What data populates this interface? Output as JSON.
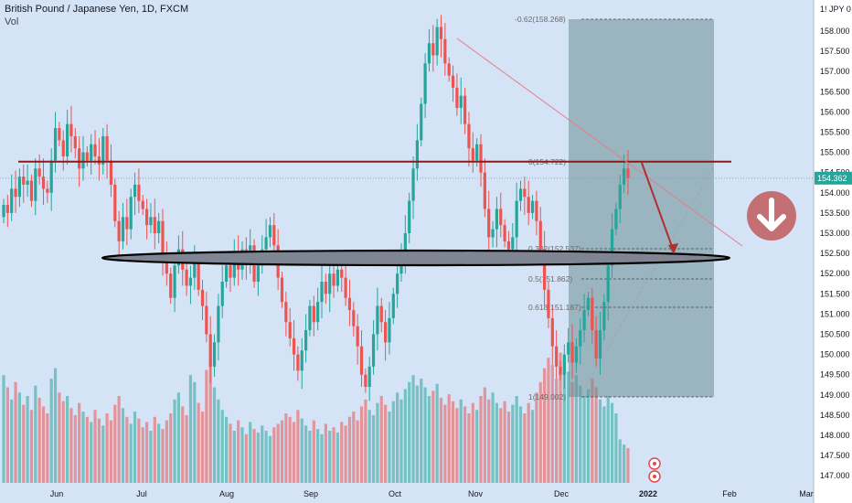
{
  "header": {
    "symbol_line": "British Pound / Japanese Yen, 1D, FXCM",
    "vol_label": "Vol"
  },
  "chart_data": {
    "type": "candlestick",
    "title": "British Pound / Japanese Yen, 1D, FXCM",
    "currency_label": "JPY",
    "ylim": [
      146.8,
      158.7
    ],
    "y_ticks": [
      "158.000",
      "157.500",
      "157.000",
      "156.500",
      "156.000",
      "155.500",
      "155.000",
      "154.500",
      "154.000",
      "153.500",
      "153.000",
      "152.500",
      "152.000",
      "151.500",
      "151.000",
      "150.500",
      "150.000",
      "149.500",
      "149.000",
      "148.500",
      "148.000",
      "147.500",
      "147.000"
    ],
    "x_ticks": [
      "Jun",
      "Jul",
      "Aug",
      "Sep",
      "Oct",
      "Nov",
      "Dec",
      "2022",
      "Feb",
      "Mar"
    ],
    "last_price": "154.362",
    "resistance_level": 154.77,
    "colors": {
      "up": "#26a69a",
      "down": "#ef5350",
      "bg": "#d4e3f6",
      "line": "#8b1a1a"
    },
    "fib_labels": [
      "-0.62(158.268)",
      "0(154.722)",
      "0.382(152.537)",
      "0.5(151.862)",
      "0.618(151.187)",
      "1(149.002)"
    ],
    "closes": [
      153.7,
      153.5,
      154.1,
      153.9,
      154.4,
      154.2,
      154.3,
      153.8,
      154.6,
      154.4,
      154.1,
      154.0,
      154.8,
      155.6,
      155.3,
      154.9,
      155.7,
      155.4,
      155.1,
      154.6,
      155.0,
      154.8,
      155.2,
      154.9,
      154.7,
      155.4,
      154.8,
      154.2,
      153.3,
      152.8,
      153.4,
      153.1,
      153.9,
      154.2,
      153.8,
      153.6,
      153.2,
      153.4,
      153.0,
      153.3,
      152.4,
      152.0,
      151.4,
      152.2,
      152.6,
      152.1,
      151.7,
      151.9,
      152.3,
      151.6,
      151.2,
      150.5,
      149.7,
      150.3,
      151.2,
      151.8,
      152.2,
      151.9,
      152.5,
      152.1,
      152.6,
      152.3,
      152.7,
      151.8,
      152.2,
      152.6,
      152.9,
      153.2,
      152.7,
      151.9,
      151.3,
      150.8,
      150.4,
      150.0,
      149.6,
      150.1,
      150.6,
      151.2,
      150.8,
      151.3,
      151.8,
      151.5,
      152.0,
      151.7,
      152.1,
      151.9,
      151.4,
      151.1,
      150.7,
      150.2,
      149.5,
      149.2,
      149.7,
      150.5,
      151.2,
      150.8,
      150.3,
      150.9,
      151.5,
      152.0,
      152.4,
      153.0,
      153.8,
      154.6,
      155.3,
      156.2,
      157.2,
      157.7,
      157.4,
      158.1,
      157.8,
      157.2,
      156.9,
      156.6,
      156.1,
      156.4,
      155.7,
      155.1,
      154.8,
      155.2,
      154.5,
      153.6,
      152.9,
      153.1,
      153.6,
      153.2,
      152.8,
      152.6,
      152.9,
      153.8,
      154.1,
      153.9,
      153.5,
      153.8,
      153.3,
      152.6,
      151.6,
      150.9,
      150.2,
      149.7,
      149.5,
      150.0,
      150.3,
      149.8,
      150.2,
      150.6,
      151.1,
      151.4,
      150.6,
      149.9,
      150.6,
      151.3,
      152.2,
      153.1,
      153.6,
      154.2,
      154.6,
      154.36
    ],
    "volumes": [
      0.62,
      0.55,
      0.48,
      0.58,
      0.52,
      0.45,
      0.5,
      0.42,
      0.56,
      0.49,
      0.44,
      0.4,
      0.6,
      0.66,
      0.52,
      0.47,
      0.5,
      0.43,
      0.39,
      0.46,
      0.41,
      0.38,
      0.35,
      0.42,
      0.37,
      0.33,
      0.4,
      0.36,
      0.45,
      0.5,
      0.43,
      0.38,
      0.34,
      0.41,
      0.37,
      0.32,
      0.35,
      0.3,
      0.38,
      0.34,
      0.31,
      0.36,
      0.4,
      0.48,
      0.52,
      0.44,
      0.39,
      0.62,
      0.58,
      0.46,
      0.41,
      0.65,
      0.72,
      0.55,
      0.48,
      0.42,
      0.38,
      0.34,
      0.3,
      0.36,
      0.32,
      0.28,
      0.35,
      0.31,
      0.29,
      0.33,
      0.3,
      0.27,
      0.32,
      0.34,
      0.36,
      0.4,
      0.38,
      0.35,
      0.42,
      0.37,
      0.33,
      0.3,
      0.36,
      0.31,
      0.28,
      0.34,
      0.3,
      0.32,
      0.29,
      0.35,
      0.33,
      0.38,
      0.41,
      0.36,
      0.44,
      0.48,
      0.42,
      0.39,
      0.46,
      0.5,
      0.45,
      0.41,
      0.47,
      0.52,
      0.48,
      0.54,
      0.58,
      0.62,
      0.56,
      0.6,
      0.55,
      0.5,
      0.53,
      0.57,
      0.49,
      0.45,
      0.51,
      0.47,
      0.43,
      0.48,
      0.44,
      0.4,
      0.46,
      0.42,
      0.5,
      0.55,
      0.48,
      0.52,
      0.46,
      0.43,
      0.47,
      0.41,
      0.45,
      0.5,
      0.44,
      0.4,
      0.46,
      0.42,
      0.52,
      0.58,
      0.66,
      0.72,
      0.68,
      0.6,
      0.75,
      0.7,
      0.64,
      0.58,
      0.62,
      0.56,
      0.5,
      0.54,
      0.6,
      0.55,
      0.48,
      0.44,
      0.5,
      0.46,
      0.4,
      0.25,
      0.22,
      0.2
    ]
  }
}
